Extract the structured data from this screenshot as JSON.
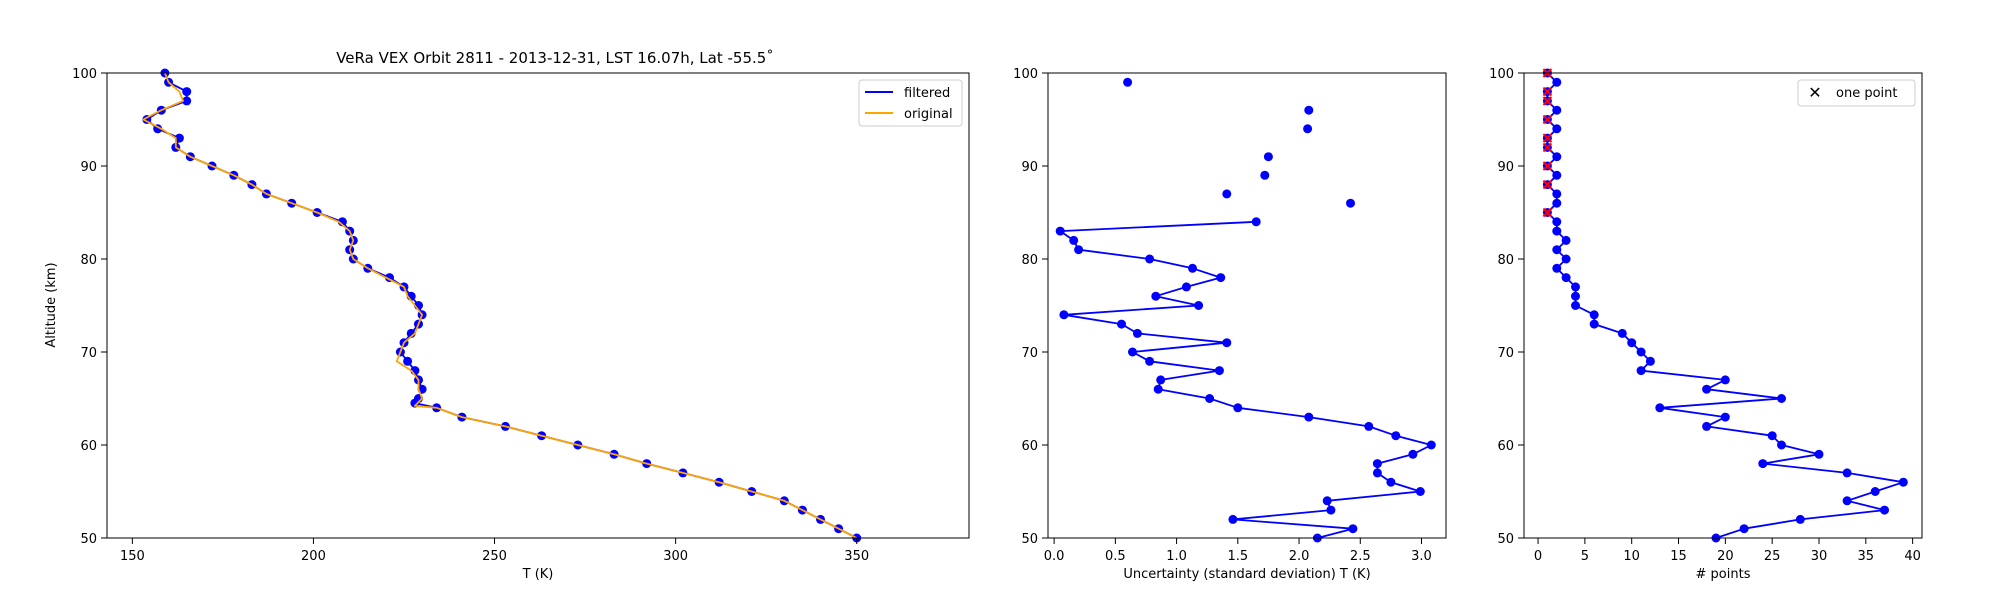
{
  "chart_data": [
    {
      "type": "line",
      "title": "VeRa VEX Orbit 2811 - 2013-12-31, LST 16.07h, Lat -55.5˚",
      "xlabel": "T (K)",
      "ylabel": "Altitude (km)",
      "xlim": [
        143,
        381
      ],
      "ylim": [
        50,
        100
      ],
      "xticks": [
        150,
        200,
        250,
        300,
        350
      ],
      "yticks": [
        50,
        60,
        70,
        80,
        90,
        100
      ],
      "legend_position": "top-right",
      "colors": {
        "filtered": "#0000ff",
        "original": "#ffa500"
      },
      "series": [
        {
          "name": "filtered",
          "marker": "circle",
          "points": [
            [
              350,
              50
            ],
            [
              345,
              51
            ],
            [
              340,
              52
            ],
            [
              335,
              53
            ],
            [
              330,
              54
            ],
            [
              321,
              55
            ],
            [
              312,
              56
            ],
            [
              302,
              57
            ],
            [
              292,
              58
            ],
            [
              283,
              59
            ],
            [
              273,
              60
            ],
            [
              263,
              61
            ],
            [
              253,
              62
            ],
            [
              241,
              63
            ],
            [
              234,
              64
            ],
            [
              228,
              64.5
            ],
            [
              229,
              65
            ],
            [
              230,
              66
            ],
            [
              229,
              67
            ],
            [
              228,
              68
            ],
            [
              226,
              69
            ],
            [
              224,
              70
            ],
            [
              225,
              71
            ],
            [
              227,
              72
            ],
            [
              229,
              73
            ],
            [
              230,
              74
            ],
            [
              229,
              75
            ],
            [
              227,
              76
            ],
            [
              225,
              77
            ],
            [
              221,
              78
            ],
            [
              215,
              79
            ],
            [
              211,
              80
            ],
            [
              210,
              81
            ],
            [
              211,
              82
            ],
            [
              210,
              83
            ],
            [
              208,
              84
            ],
            [
              201,
              85
            ],
            [
              194,
              86
            ],
            [
              187,
              87
            ],
            [
              183,
              88
            ],
            [
              178,
              89
            ],
            [
              172,
              90
            ],
            [
              166,
              91
            ],
            [
              162,
              92
            ],
            [
              163,
              93
            ],
            [
              157,
              94
            ],
            [
              154,
              95
            ],
            [
              158,
              96
            ],
            [
              165,
              97
            ],
            [
              165,
              98
            ],
            [
              160,
              99
            ],
            [
              159,
              100
            ]
          ]
        },
        {
          "name": "original",
          "points": [
            [
              350,
              50
            ],
            [
              345,
              51
            ],
            [
              340,
              52
            ],
            [
              335,
              53
            ],
            [
              330,
              54
            ],
            [
              321,
              55
            ],
            [
              312,
              56
            ],
            [
              302,
              57
            ],
            [
              292,
              58
            ],
            [
              283,
              59
            ],
            [
              273,
              60
            ],
            [
              263,
              61
            ],
            [
              253,
              62
            ],
            [
              241,
              63
            ],
            [
              234,
              64
            ],
            [
              228,
              64.2
            ],
            [
              230,
              65
            ],
            [
              229,
              66
            ],
            [
              229,
              67
            ],
            [
              227,
              68
            ],
            [
              223,
              69
            ],
            [
              224,
              70
            ],
            [
              225,
              71
            ],
            [
              228,
              72
            ],
            [
              229,
              73
            ],
            [
              230,
              74
            ],
            [
              228,
              75
            ],
            [
              226,
              76
            ],
            [
              225,
              77
            ],
            [
              220,
              78
            ],
            [
              215,
              79
            ],
            [
              211,
              80
            ],
            [
              210,
              81
            ],
            [
              211,
              82
            ],
            [
              210,
              83
            ],
            [
              207,
              84
            ],
            [
              201,
              85
            ],
            [
              194,
              86
            ],
            [
              187,
              87
            ],
            [
              183,
              88
            ],
            [
              178,
              89
            ],
            [
              172,
              90
            ],
            [
              166,
              91
            ],
            [
              162,
              92
            ],
            [
              162,
              93
            ],
            [
              158,
              94
            ],
            [
              153,
              95
            ],
            [
              158,
              96
            ],
            [
              164,
              97
            ],
            [
              163,
              98
            ],
            [
              160,
              99
            ],
            [
              159,
              100
            ]
          ]
        }
      ]
    },
    {
      "type": "line",
      "title": "",
      "xlabel": "Uncertainty (standard deviation) T (K)",
      "ylabel": "",
      "xlim": [
        -0.05,
        3.2
      ],
      "ylim": [
        50,
        100
      ],
      "xticks": [
        0.0,
        0.5,
        1.0,
        1.5,
        2.0,
        2.5,
        3.0
      ],
      "xtick_labels": [
        "0.0",
        "0.5",
        "1.0",
        "1.5",
        "2.0",
        "2.5",
        "3.0"
      ],
      "yticks": [
        50,
        60,
        70,
        80,
        90,
        100
      ],
      "colors": {
        "line": "#0000ff"
      },
      "series": [
        {
          "marker": "circle",
          "points": [
            [
              2.15,
              50
            ],
            [
              2.44,
              51
            ],
            [
              1.46,
              52
            ],
            [
              2.26,
              53
            ],
            [
              2.23,
              54
            ],
            [
              2.99,
              55
            ],
            [
              2.75,
              56
            ],
            [
              2.64,
              57
            ],
            [
              2.64,
              58
            ],
            [
              2.93,
              59
            ],
            [
              3.08,
              60
            ],
            [
              2.79,
              61
            ],
            [
              2.57,
              62
            ],
            [
              2.08,
              63
            ],
            [
              1.5,
              64
            ],
            [
              1.27,
              65
            ],
            [
              0.85,
              66
            ],
            [
              0.87,
              67
            ],
            [
              1.35,
              68
            ],
            [
              0.78,
              69
            ],
            [
              0.64,
              70
            ],
            [
              1.41,
              71
            ],
            [
              0.68,
              72
            ],
            [
              0.55,
              73
            ],
            [
              0.08,
              74
            ],
            [
              1.18,
              75
            ],
            [
              0.83,
              76
            ],
            [
              1.08,
              77
            ],
            [
              1.36,
              78
            ],
            [
              1.13,
              79
            ],
            [
              0.78,
              80
            ],
            [
              0.2,
              81
            ],
            [
              0.16,
              82
            ],
            [
              0.05,
              83
            ],
            [
              1.65,
              84
            ]
          ]
        },
        {
          "marker": "circle",
          "line": false,
          "points": [
            [
              2.42,
              86
            ],
            [
              1.41,
              87
            ],
            [
              1.72,
              89
            ],
            [
              1.75,
              91
            ],
            [
              2.07,
              94
            ],
            [
              2.08,
              96
            ],
            [
              0.6,
              99
            ]
          ]
        }
      ]
    },
    {
      "type": "line",
      "title": "",
      "xlabel": "# points",
      "ylabel": "",
      "xlim": [
        -1.5,
        41
      ],
      "ylim": [
        50,
        100
      ],
      "xticks": [
        0,
        5,
        10,
        15,
        20,
        25,
        30,
        35,
        40
      ],
      "yticks": [
        50,
        60,
        70,
        80,
        90,
        100
      ],
      "legend_position": "top-right",
      "colors": {
        "line": "#0000ff",
        "one_point": "#ff0000"
      },
      "series": [
        {
          "marker": "circle",
          "points": [
            [
              19,
              50
            ],
            [
              22,
              51
            ],
            [
              28,
              52
            ],
            [
              37,
              53
            ],
            [
              33,
              54
            ],
            [
              36,
              55
            ],
            [
              39,
              56
            ],
            [
              33,
              57
            ],
            [
              24,
              58
            ],
            [
              30,
              59
            ],
            [
              26,
              60
            ],
            [
              25,
              61
            ],
            [
              18,
              62
            ],
            [
              20,
              63
            ],
            [
              13,
              64
            ],
            [
              26,
              65
            ],
            [
              18,
              66
            ],
            [
              20,
              67
            ],
            [
              11,
              68
            ],
            [
              12,
              69
            ],
            [
              11,
              70
            ],
            [
              10,
              71
            ],
            [
              9,
              72
            ],
            [
              6,
              73
            ],
            [
              6,
              74
            ],
            [
              4,
              75
            ],
            [
              4,
              76
            ],
            [
              4,
              77
            ],
            [
              3,
              78
            ],
            [
              2,
              79
            ],
            [
              3,
              80
            ],
            [
              2,
              81
            ],
            [
              3,
              82
            ],
            [
              2,
              83
            ],
            [
              2,
              84
            ],
            [
              1,
              85
            ],
            [
              2,
              86
            ],
            [
              2,
              87
            ],
            [
              1,
              88
            ],
            [
              2,
              89
            ],
            [
              1,
              90
            ],
            [
              2,
              91
            ],
            [
              1,
              92
            ],
            [
              1,
              93
            ],
            [
              2,
              94
            ],
            [
              1,
              95
            ],
            [
              2,
              96
            ],
            [
              1,
              97
            ],
            [
              1,
              98
            ],
            [
              2,
              99
            ],
            [
              1,
              100
            ]
          ]
        },
        {
          "name": "one point",
          "marker": "x",
          "line": false,
          "points": [
            [
              1,
              85
            ],
            [
              1,
              88
            ],
            [
              1,
              90
            ],
            [
              1,
              92
            ],
            [
              1,
              93
            ],
            [
              1,
              95
            ],
            [
              1,
              97
            ],
            [
              1,
              98
            ],
            [
              1,
              100
            ]
          ]
        }
      ]
    }
  ]
}
